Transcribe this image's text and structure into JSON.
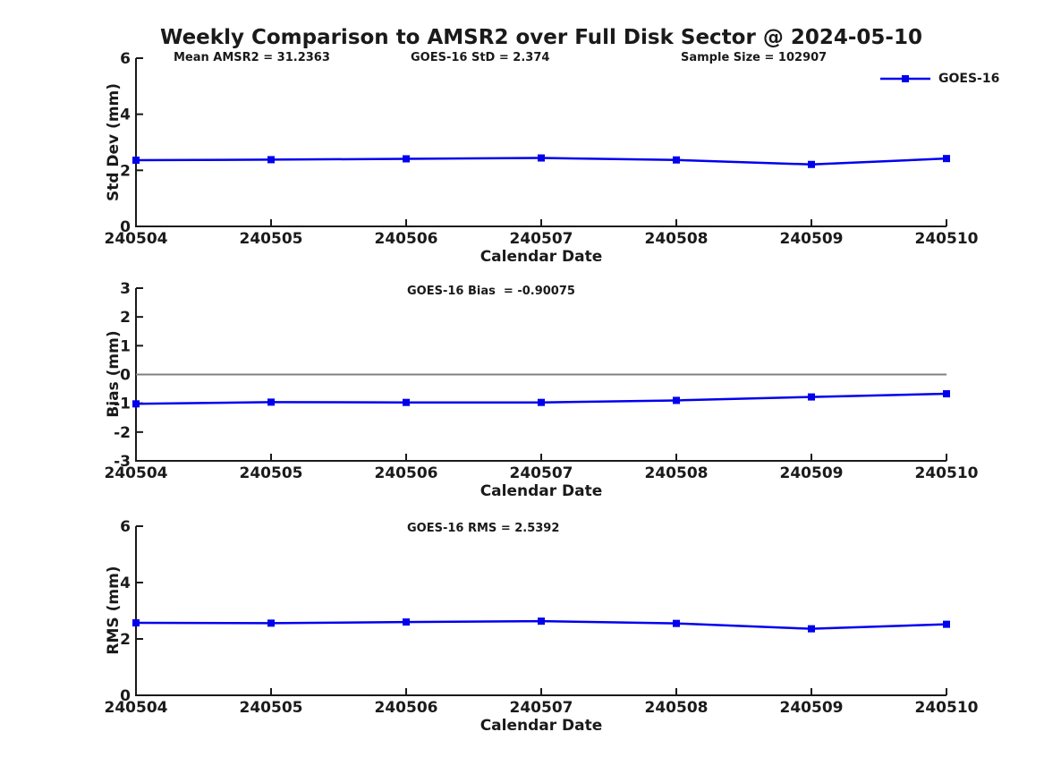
{
  "page": {
    "title": "Weekly Comparison to AMSR2 over Full Disk Sector @ 2024-05-10"
  },
  "legend": {
    "label": "GOES-16"
  },
  "colors": {
    "series": "#0000ee",
    "zero_line": "#808080",
    "axis": "#1a1a1a"
  },
  "chart_data": [
    {
      "type": "line",
      "annotations": [
        "Mean AMSR2 = 31.2363",
        "GOES-16 StD = 2.374",
        "Sample Size = 102907"
      ],
      "categories": [
        "240504",
        "240505",
        "240506",
        "240507",
        "240508",
        "240509",
        "240510"
      ],
      "series": [
        {
          "name": "GOES-16",
          "values": [
            2.36,
            2.38,
            2.41,
            2.44,
            2.37,
            2.21,
            2.42
          ]
        }
      ],
      "xlabel": "Calendar Date",
      "ylabel": "Std Dev (mm)",
      "ylim": [
        0,
        6
      ],
      "yticks": [
        0,
        2,
        4,
        6
      ],
      "grid": false,
      "legend_position": "top-right"
    },
    {
      "type": "line",
      "annotations": [
        "GOES-16 Bias  = -0.90075"
      ],
      "categories": [
        "240504",
        "240505",
        "240506",
        "240507",
        "240508",
        "240509",
        "240510"
      ],
      "series": [
        {
          "name": "GOES-16",
          "values": [
            -1.02,
            -0.96,
            -0.97,
            -0.97,
            -0.9,
            -0.78,
            -0.67
          ]
        }
      ],
      "xlabel": "Calendar Date",
      "ylabel": "Bias (mm)",
      "ylim": [
        -3,
        3
      ],
      "yticks": [
        3,
        2,
        1,
        0,
        -1,
        -2,
        -3
      ],
      "zero_line": true,
      "grid": false
    },
    {
      "type": "line",
      "annotations": [
        "GOES-16 RMS = 2.5392"
      ],
      "categories": [
        "240504",
        "240505",
        "240506",
        "240507",
        "240508",
        "240509",
        "240510"
      ],
      "series": [
        {
          "name": "GOES-16",
          "values": [
            2.57,
            2.56,
            2.6,
            2.63,
            2.55,
            2.36,
            2.52
          ]
        }
      ],
      "xlabel": "Calendar Date",
      "ylabel": "RMS (mm)",
      "ylim": [
        0,
        6
      ],
      "yticks": [
        0,
        2,
        4,
        6
      ],
      "grid": false
    }
  ]
}
